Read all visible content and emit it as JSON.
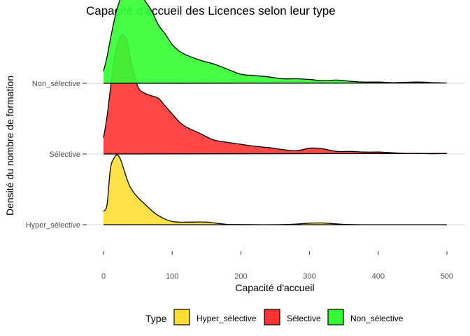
{
  "chart_data": {
    "type": "ridgeline-density",
    "title": "Capacité d'accueil des Licences selon leur type",
    "xlabel": "Capacité d'accueil",
    "ylabel": "Densité du nombre de formation",
    "xlim": [
      0,
      500
    ],
    "x_ticks": [
      0,
      100,
      200,
      300,
      400,
      500
    ],
    "legend": {
      "title": "Type",
      "position": "bottom",
      "items": [
        {
          "label": "Hyper_sélective",
          "color": "#FFDD33"
        },
        {
          "label": "Sélective",
          "color": "#FF3333"
        },
        {
          "label": "Non_sélective",
          "color": "#33FF33"
        }
      ]
    },
    "series": [
      {
        "name": "Hyper_sélective",
        "baseline_label": "Hyper_sélective",
        "color": "#FFDD33",
        "x": [
          0,
          5,
          10,
          15,
          20,
          25,
          30,
          35,
          40,
          50,
          60,
          70,
          80,
          90,
          100,
          110,
          120,
          130,
          140,
          150,
          160,
          170,
          180,
          190,
          200,
          230,
          260,
          280,
          300,
          310,
          320,
          340,
          360,
          400,
          450,
          500
        ],
        "density": [
          0.00105,
          0.0015,
          0.0043,
          0.0051,
          0.0054,
          0.005,
          0.0042,
          0.0034,
          0.0028,
          0.0021,
          0.0016,
          0.0011,
          0.0007,
          0.00042,
          0.00025,
          0.0002,
          0.0002,
          0.0002,
          0.00021,
          0.0002,
          0.00014,
          8e-05,
          2e-05,
          1e-05,
          1e-05,
          0.0,
          1e-05,
          5e-05,
          0.00012,
          0.00013,
          0.00013,
          6e-05,
          1e-05,
          0.0,
          0.0,
          0.0
        ]
      },
      {
        "name": "Sélective",
        "baseline_label": "Sélective",
        "color": "#FF3333",
        "x": [
          0,
          5,
          10,
          15,
          20,
          25,
          30,
          35,
          40,
          50,
          60,
          70,
          80,
          90,
          100,
          110,
          120,
          140,
          160,
          180,
          200,
          220,
          240,
          260,
          280,
          300,
          310,
          320,
          340,
          360,
          380,
          400,
          420,
          440,
          460,
          480,
          500
        ],
        "density": [
          0.00125,
          0.00285,
          0.005,
          0.0071,
          0.0084,
          0.00905,
          0.00915,
          0.0086,
          0.0072,
          0.0052,
          0.0047,
          0.0045,
          0.0043,
          0.0037,
          0.0031,
          0.0025,
          0.0021,
          0.0016,
          0.0011,
          0.0009,
          0.00075,
          0.0006,
          0.0005,
          0.00035,
          0.00025,
          0.00045,
          0.00045,
          0.0004,
          0.0002,
          0.0002,
          0.00015,
          0.00015,
          0.0001,
          5e-05,
          5e-05,
          2e-05,
          5e-05
        ]
      },
      {
        "name": "Non_sélective",
        "baseline_label": "Non_sélective",
        "color": "#33FF33",
        "x": [
          0,
          5,
          10,
          15,
          20,
          30,
          40,
          50,
          60,
          70,
          80,
          90,
          100,
          110,
          120,
          140,
          160,
          180,
          200,
          220,
          240,
          260,
          280,
          300,
          320,
          340,
          360,
          380,
          400,
          420,
          440,
          460,
          480,
          500
        ],
        "density": [
          0.00095,
          0.002,
          0.0034,
          0.0047,
          0.0058,
          0.0072,
          0.0077,
          0.0073,
          0.0064,
          0.0056,
          0.0045,
          0.0038,
          0.003,
          0.0025,
          0.0022,
          0.0018,
          0.0015,
          0.0011,
          0.0007,
          0.0006,
          0.0005,
          0.00035,
          0.00035,
          0.0003,
          0.0002,
          0.00025,
          0.00015,
          0.0001,
          0.0001,
          5e-05,
          8e-05,
          0.0001,
          5e-05,
          2e-05
        ]
      }
    ]
  }
}
